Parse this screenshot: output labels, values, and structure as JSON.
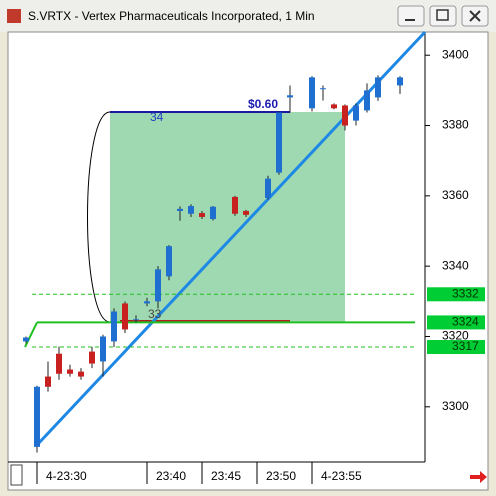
{
  "window_title": "S.VRTX - Vertex Pharmaceuticals Incorporated, 1 Min",
  "chart_data": {
    "type": "candlestick",
    "categories": [
      null,
      "4-23:30",
      null,
      null,
      null,
      null,
      null,
      null,
      null,
      null,
      null,
      "23:40",
      null,
      null,
      null,
      null,
      "23:45",
      null,
      null,
      null,
      null,
      "23:50",
      null,
      null,
      null,
      null,
      "4-23:55",
      null,
      null,
      null,
      null,
      null,
      null,
      null,
      null
    ],
    "open": [
      3318.6,
      3288.6,
      3308.6,
      3315.1,
      3310.6,
      3310.0,
      3315.7,
      3312.9,
      3318.6,
      3329.4,
      3324.9,
      3329.4,
      3330.0,
      3337.1,
      3355.7,
      3354.9,
      3355.1,
      3353.4,
      null,
      3359.7,
      3355.7,
      null,
      3359.4,
      3366.6,
      3388.0,
      null,
      3384.9,
      3390.6,
      3386.0,
      3385.7,
      3381.4,
      3384.3,
      3388.0,
      null,
      3391.4
    ],
    "high": [
      3320.0,
      3306.0,
      3312.9,
      3317.1,
      3312.0,
      3311.0,
      3317.0,
      3320.5,
      3328.0,
      3330.0,
      3326.0,
      3331.0,
      3340.0,
      3346.0,
      3357.0,
      3357.6,
      3355.7,
      3357.1,
      null,
      3360.0,
      3356.0,
      null,
      3365.7,
      3384.0,
      3391.4,
      null,
      3394.0,
      3391.4,
      3386.3,
      3386.0,
      3386.3,
      3392.0,
      3394.3,
      null,
      3394.0
    ],
    "low": [
      3318.0,
      3287.0,
      3304.3,
      3307.7,
      3308.6,
      3307.7,
      3311.0,
      3308.6,
      3317.0,
      3321.0,
      3324.0,
      3328.6,
      3328.0,
      3336.0,
      3352.9,
      3354.0,
      3353.4,
      3353.0,
      null,
      3354.3,
      3354.0,
      null,
      3359.0,
      3366.0,
      3383.7,
      null,
      3384.0,
      3387.1,
      3384.6,
      3378.6,
      3380.0,
      3383.7,
      3387.0,
      null,
      3389.0
    ],
    "close": [
      3319.7,
      3305.7,
      3305.7,
      3309.4,
      3309.4,
      3308.6,
      3312.3,
      3320.0,
      3327.1,
      3322.0,
      3324.9,
      3330.0,
      3339.1,
      3345.7,
      3356.3,
      3357.1,
      3354.0,
      3356.9,
      null,
      3354.9,
      3354.6,
      null,
      3364.9,
      3383.7,
      3388.6,
      null,
      3393.7,
      3390.6,
      3384.9,
      3380.0,
      3385.7,
      3390.0,
      3393.7,
      null,
      3393.7
    ],
    "up_color": "#1e6fd0",
    "down_color": "#c8201e",
    "ylim": [
      3284.3,
      3406.6
    ],
    "yticks": [
      3300,
      3320,
      3340,
      3360,
      3380,
      3400
    ],
    "price_levels": [
      3332,
      3324,
      3317
    ],
    "annotations": [
      "34",
      "33",
      "$0.60"
    ]
  }
}
